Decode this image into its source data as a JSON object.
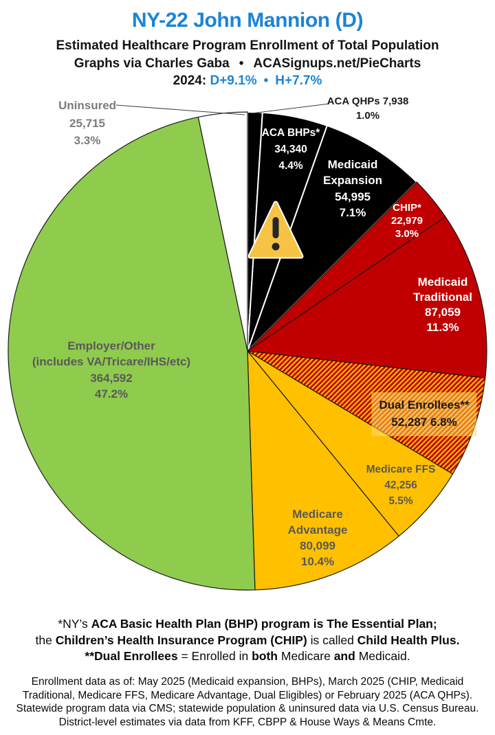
{
  "header": {
    "title": "NY-22 John Mannion (D)",
    "subtitle": "Estimated Healthcare Program Enrollment of Total Population",
    "credit_left": "Graphs via Charles Gaba",
    "credit_bullet": "•",
    "credit_right": "ACASignups.net/PieCharts",
    "partisan_prefix": "2024:",
    "partisan_d": "D+9.1%",
    "partisan_bullet": "•",
    "partisan_h": "H+7.7%"
  },
  "colors": {
    "title_blue": "#1B84D6",
    "partisan_blue": "#1B84D6",
    "black_slice": "#000000",
    "red_slice": "#C00000",
    "yellow_slice": "#FFC000",
    "green_slice": "#8FCB4D",
    "white_slice": "#FFFFFF",
    "dark_outline": "#1A1A1A",
    "white_separator": "#FFFFFF",
    "label_gray_dark": "#595959",
    "label_gray_light": "#7C7C7C",
    "leader_line": "#3F3F3F",
    "warning_yellow": "#F6C344",
    "warning_glyph": "#262626"
  },
  "chart_data": {
    "type": "pie",
    "title": "Estimated Healthcare Program Enrollment of Total Population",
    "start_angle_deg": 0,
    "direction": "clockwise",
    "total_pct": 100.0,
    "slices": [
      {
        "id": "aca-qhps",
        "label": "ACA QHPs",
        "value": 7938,
        "value_label": "7,938",
        "pct": 1.0,
        "pct_label": "1.0%",
        "color": "#000000",
        "separator": "#FFFFFF",
        "label_color": "#1A1A1A",
        "label_placement": "outside"
      },
      {
        "id": "aca-bhps",
        "label": "ACA BHPs*",
        "value": 34340,
        "value_label": "34,340",
        "pct": 4.4,
        "pct_label": "4.4%",
        "color": "#000000",
        "separator": "#FFFFFF",
        "label_color": "#FFFFFF",
        "label_placement": "inside"
      },
      {
        "id": "medicaid-expansion",
        "label": "Medicaid Expansion",
        "value": 54995,
        "value_label": "54,995",
        "pct": 7.1,
        "pct_label": "7.1%",
        "color": "#000000",
        "separator": "#FFFFFF",
        "label_color": "#FFFFFF",
        "label_placement": "inside"
      },
      {
        "id": "chip",
        "label": "CHIP*",
        "value": 22979,
        "value_label": "22,979",
        "pct": 3.0,
        "pct_label": "3.0%",
        "color": "#C00000",
        "separator": "#1A1A1A",
        "label_color": "#FFFFFF",
        "label_placement": "inside"
      },
      {
        "id": "medicaid-traditional",
        "label": "Medicaid Traditional",
        "value": 87059,
        "value_label": "87,059",
        "pct": 11.3,
        "pct_label": "11.3%",
        "color": "#C00000",
        "separator": "#1A1A1A",
        "label_color": "#FFFFFF",
        "label_placement": "inside"
      },
      {
        "id": "dual-enrollees",
        "label": "Dual Enrollees**",
        "value": 52287,
        "value_label": "52,287",
        "pct": 6.8,
        "pct_label": "6.8%",
        "color": "#C00000",
        "hatch": true,
        "hatch_color": "#FFC000",
        "separator": "#1A1A1A",
        "label_color": "#1A1A1A",
        "label_placement": "inside"
      },
      {
        "id": "medicare-ffs",
        "label": "Medicare FFS",
        "value": 42256,
        "value_label": "42,256",
        "pct": 5.5,
        "pct_label": "5.5%",
        "color": "#FFC000",
        "separator": "#1A1A1A",
        "label_color": "#595959",
        "label_placement": "inside"
      },
      {
        "id": "medicare-advantage",
        "label": "Medicare Advantage",
        "value": 80099,
        "value_label": "80,099",
        "pct": 10.4,
        "pct_label": "10.4%",
        "color": "#FFC000",
        "separator": "#1A1A1A",
        "label_color": "#595959",
        "label_placement": "inside"
      },
      {
        "id": "employer-other",
        "label": "Employer/Other",
        "sublabel": "(includes VA/Tricare/IHS/etc)",
        "value": 364592,
        "value_label": "364,592",
        "pct": 47.2,
        "pct_label": "47.2%",
        "color": "#8FCB4D",
        "separator": "#1A1A1A",
        "label_color": "#595959",
        "label_placement": "inside"
      },
      {
        "id": "uninsured",
        "label": "Uninsured",
        "value": 25715,
        "value_label": "25,715",
        "pct": 3.3,
        "pct_label": "3.3%",
        "color": "#FFFFFF",
        "separator": "#1A1A1A",
        "label_color": "#7C7C7C",
        "label_placement": "outside"
      }
    ]
  },
  "warning_icon_name": "warning-icon",
  "notes": {
    "definitions": [
      [
        {
          "t": "*NY’s ",
          "b": false
        },
        {
          "t": "ACA Basic Health Plan (BHP) program is The Essential Plan",
          "b": true
        },
        {
          "t": ";",
          "b": true
        }
      ],
      [
        {
          "t": "the ",
          "b": false
        },
        {
          "t": "Children’s Health Insurance Program (CHIP)",
          "b": true
        },
        {
          "t": " is called ",
          "b": false
        },
        {
          "t": "Child Health Plus.",
          "b": true
        }
      ],
      [
        {
          "t": "**Dual Enrollees",
          "b": true
        },
        {
          "t": " = Enrolled in ",
          "b": false
        },
        {
          "t": "both",
          "b": true
        },
        {
          "t": " Medicare ",
          "b": false
        },
        {
          "t": "and",
          "b": true
        },
        {
          "t": " Medicaid.",
          "b": false
        }
      ]
    ],
    "sources": [
      "Enrollment data as of: May 2025 (Medicaid expansion, BHPs), March 2025 (CHIP, Medicaid",
      "Traditional, Medicare FFS, Medicare Advantage, Dual Eligibles) or February 2025 (ACA QHPs).",
      "Statewide program data via CMS; statewide population & uninsured data via U.S. Census Bureau.",
      "District-level estimates via data from KFF, CBPP & House Ways & Means Cmte."
    ]
  }
}
